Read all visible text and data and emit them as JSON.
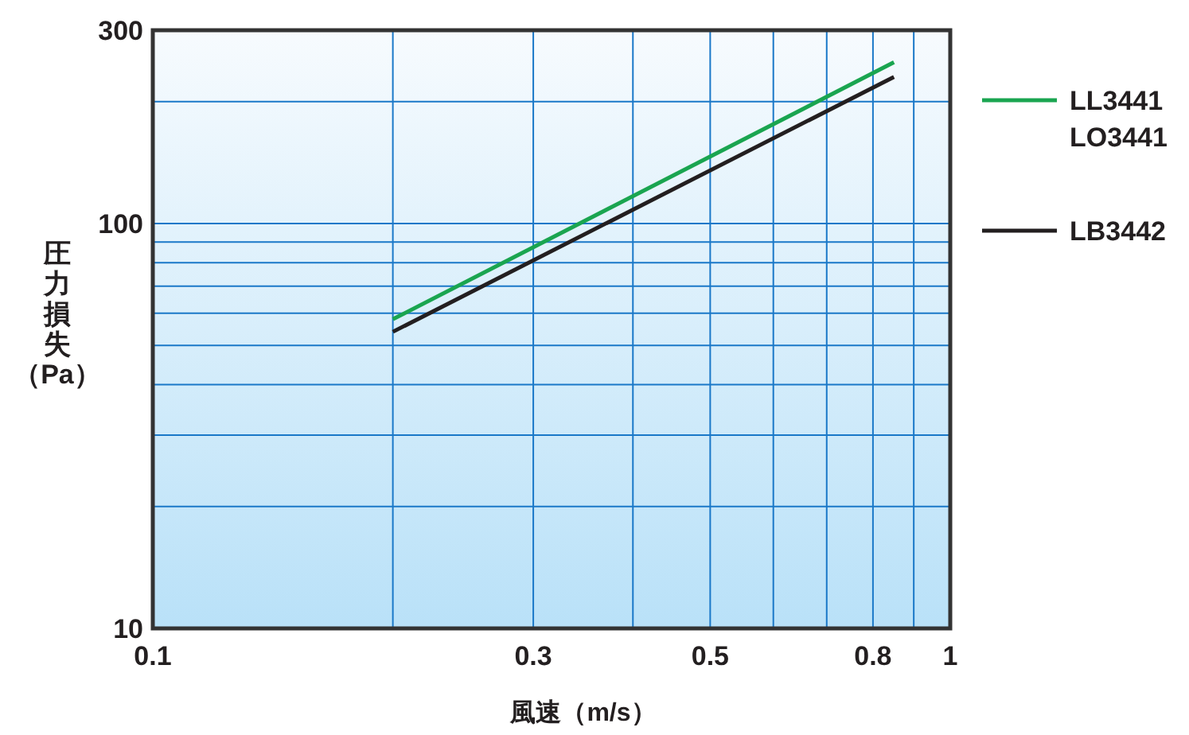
{
  "chart_data": {
    "type": "line",
    "xlabel": "風速（m/s）",
    "ylabel": "圧力損失（Pa）",
    "log": "xy",
    "xlim": [
      0.1,
      1
    ],
    "ylim": [
      10,
      300
    ],
    "xticks": [
      0.1,
      {
        "value": 0.2,
        "label": null
      },
      0.3,
      {
        "value": 0.4,
        "label": null
      },
      0.5,
      {
        "value": 0.6,
        "label": null
      },
      {
        "value": 0.7,
        "label": null
      },
      0.8,
      {
        "value": 0.9,
        "label": null
      },
      1
    ],
    "yticks": [
      10,
      {
        "value": 20,
        "label": null
      },
      {
        "value": 30,
        "label": null
      },
      {
        "value": 40,
        "label": null
      },
      {
        "value": 50,
        "label": null
      },
      {
        "value": 60,
        "label": null
      },
      {
        "value": 70,
        "label": null
      },
      {
        "value": 80,
        "label": null
      },
      {
        "value": 90,
        "label": null
      },
      100,
      {
        "value": 200,
        "label": null
      },
      300
    ],
    "grid": true,
    "legend": "right",
    "x": [
      0.2,
      0.85
    ],
    "series": [
      {
        "name": "LL3441 LO3441",
        "color": "#1aa550",
        "values": [
          58,
          250
        ]
      },
      {
        "name": "LB3442",
        "color": "#231f20",
        "values": [
          54,
          230
        ]
      }
    ]
  }
}
